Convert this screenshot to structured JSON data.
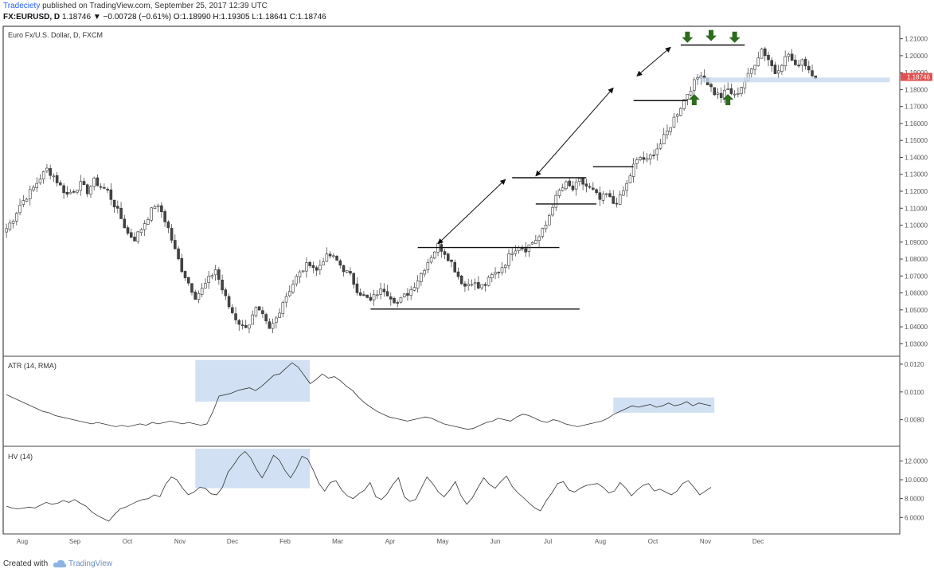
{
  "header": {
    "author": "Tradeciety",
    "published_text": "published on TradingView.com, September 25, 2017 12:39 UTC",
    "symbol": "FX:EURUSD, D",
    "last": "1.18746",
    "change": "▼ −0.00728 (−0.61%)",
    "ohlc": "O:1.18990 H:1.19305 L:1.18641 C:1.18746"
  },
  "footer": {
    "created_with": "Created with",
    "brand": "TradingView",
    "logo_icon": "tradingview-cloud-icon"
  },
  "chart_data": [
    {
      "type": "candlestick",
      "title": "Euro Fx/U.S. Dollar, D, FXCM",
      "ylim": [
        1.025,
        1.215
      ],
      "yticks": [
        1.21,
        1.2,
        1.19,
        1.18,
        1.17,
        1.16,
        1.15,
        1.14,
        1.13,
        1.12,
        1.11,
        1.1,
        1.09,
        1.08,
        1.07,
        1.06,
        1.05,
        1.04,
        1.03
      ],
      "ytick_labels": [
        "1.21000",
        "1.20000",
        "1.19000",
        "1.18000",
        "1.17000",
        "1.16000",
        "1.15000",
        "1.14000",
        "1.13000",
        "1.12000",
        "1.11000",
        "1.10000",
        "1.09000",
        "1.08000",
        "1.07000",
        "1.06000",
        "1.05000",
        "1.04000",
        "1.03000"
      ],
      "current_price_label": "1.18746",
      "current_price": 1.18746,
      "xtick_labels": [
        "Aug",
        "Sep",
        "Oct",
        "Nov",
        "Dec",
        "Feb",
        "Mar",
        "Apr",
        "May",
        "Jun",
        "Jul",
        "Aug",
        "Oct",
        "Nov",
        "Dec"
      ],
      "close_path": [
        [
          0,
          1.098
        ],
        [
          2,
          1.104
        ],
        [
          4,
          1.112
        ],
        [
          6,
          1.117
        ],
        [
          8,
          1.122
        ],
        [
          10,
          1.128
        ],
        [
          12,
          1.133
        ],
        [
          14,
          1.129
        ],
        [
          16,
          1.123
        ],
        [
          18,
          1.118
        ],
        [
          20,
          1.121
        ],
        [
          22,
          1.124
        ],
        [
          24,
          1.12
        ],
        [
          26,
          1.126
        ],
        [
          28,
          1.123
        ],
        [
          30,
          1.12
        ],
        [
          32,
          1.112
        ],
        [
          34,
          1.104
        ],
        [
          36,
          1.095
        ],
        [
          38,
          1.092
        ],
        [
          40,
          1.098
        ],
        [
          42,
          1.105
        ],
        [
          44,
          1.112
        ],
        [
          46,
          1.108
        ],
        [
          48,
          1.098
        ],
        [
          50,
          1.085
        ],
        [
          52,
          1.074
        ],
        [
          54,
          1.066
        ],
        [
          56,
          1.058
        ],
        [
          58,
          1.062
        ],
        [
          60,
          1.068
        ],
        [
          62,
          1.074
        ],
        [
          64,
          1.062
        ],
        [
          66,
          1.052
        ],
        [
          68,
          1.045
        ],
        [
          70,
          1.04
        ],
        [
          72,
          1.042
        ],
        [
          74,
          1.05
        ],
        [
          76,
          1.046
        ],
        [
          78,
          1.038
        ],
        [
          80,
          1.045
        ],
        [
          82,
          1.055
        ],
        [
          84,
          1.062
        ],
        [
          86,
          1.069
        ],
        [
          88,
          1.074
        ],
        [
          90,
          1.078
        ],
        [
          92,
          1.073
        ],
        [
          94,
          1.08
        ],
        [
          96,
          1.082
        ],
        [
          98,
          1.079
        ],
        [
          100,
          1.074
        ],
        [
          102,
          1.07
        ],
        [
          104,
          1.062
        ],
        [
          106,
          1.058
        ],
        [
          108,
          1.055
        ],
        [
          110,
          1.06
        ],
        [
          112,
          1.062
        ],
        [
          114,
          1.058
        ],
        [
          116,
          1.054
        ],
        [
          118,
          1.058
        ],
        [
          120,
          1.062
        ],
        [
          122,
          1.068
        ],
        [
          124,
          1.075
        ],
        [
          126,
          1.082
        ],
        [
          128,
          1.088
        ],
        [
          130,
          1.084
        ],
        [
          132,
          1.078
        ],
        [
          134,
          1.07
        ],
        [
          136,
          1.064
        ],
        [
          138,
          1.067
        ],
        [
          140,
          1.063
        ],
        [
          142,
          1.065
        ],
        [
          144,
          1.07
        ],
        [
          146,
          1.073
        ],
        [
          148,
          1.078
        ],
        [
          150,
          1.085
        ],
        [
          152,
          1.088
        ],
        [
          154,
          1.086
        ],
        [
          156,
          1.09
        ],
        [
          158,
          1.093
        ],
        [
          160,
          1.1
        ],
        [
          162,
          1.112
        ],
        [
          164,
          1.12
        ],
        [
          166,
          1.124
        ],
        [
          168,
          1.121
        ],
        [
          170,
          1.126
        ],
        [
          172,
          1.123
        ],
        [
          174,
          1.12
        ],
        [
          176,
          1.115
        ],
        [
          178,
          1.118
        ],
        [
          180,
          1.113
        ],
        [
          182,
          1.116
        ],
        [
          184,
          1.124
        ],
        [
          186,
          1.135
        ],
        [
          188,
          1.14
        ],
        [
          190,
          1.138
        ],
        [
          192,
          1.143
        ],
        [
          194,
          1.148
        ],
        [
          196,
          1.155
        ],
        [
          198,
          1.163
        ],
        [
          200,
          1.17
        ],
        [
          202,
          1.178
        ],
        [
          204,
          1.184
        ],
        [
          206,
          1.19
        ],
        [
          208,
          1.184
        ],
        [
          210,
          1.178
        ],
        [
          212,
          1.176
        ],
        [
          214,
          1.18
        ],
        [
          216,
          1.176
        ],
        [
          218,
          1.182
        ],
        [
          220,
          1.188
        ],
        [
          222,
          1.196
        ],
        [
          224,
          1.204
        ],
        [
          226,
          1.198
        ],
        [
          228,
          1.19
        ],
        [
          230,
          1.196
        ],
        [
          232,
          1.201
        ],
        [
          234,
          1.193
        ],
        [
          236,
          1.198
        ],
        [
          238,
          1.192
        ],
        [
          240,
          1.188
        ]
      ],
      "n_bars": 241,
      "annotations": {
        "support_levels": [
          1.0505,
          1.0868,
          1.1125,
          1.1345,
          1.1735
        ],
        "resistance_levels": [
          1.128,
          1.2063
        ],
        "zone_level": 1.1857,
        "trend_arrows": 4,
        "green_arrows_down": 3,
        "green_arrows_up": 2
      }
    },
    {
      "type": "line",
      "title": "ATR (14, RMA)",
      "ylim": [
        0.0062,
        0.0124
      ],
      "yticks": [
        0.012,
        0.01,
        0.008
      ],
      "ytick_labels": [
        "0.0120",
        "0.0100",
        "0.0080"
      ],
      "values": [
        0.0098,
        0.0096,
        0.0094,
        0.0092,
        0.009,
        0.0088,
        0.0086,
        0.0085,
        0.0083,
        0.0082,
        0.0081,
        0.008,
        0.0079,
        0.0078,
        0.0077,
        0.0078,
        0.0077,
        0.0076,
        0.0075,
        0.0076,
        0.0075,
        0.0076,
        0.0077,
        0.0076,
        0.0078,
        0.0077,
        0.0078,
        0.0079,
        0.0078,
        0.0077,
        0.0078,
        0.0077,
        0.0076,
        0.0077,
        0.0086,
        0.0097,
        0.0098,
        0.0099,
        0.0101,
        0.0102,
        0.0103,
        0.0101,
        0.0104,
        0.0108,
        0.0112,
        0.0113,
        0.0117,
        0.0121,
        0.0118,
        0.0112,
        0.0106,
        0.0109,
        0.0113,
        0.011,
        0.0111,
        0.0108,
        0.0104,
        0.0101,
        0.0096,
        0.0092,
        0.0089,
        0.0086,
        0.0084,
        0.0082,
        0.0081,
        0.008,
        0.0079,
        0.008,
        0.0081,
        0.0082,
        0.0081,
        0.0079,
        0.0077,
        0.0076,
        0.0075,
        0.0074,
        0.0073,
        0.0074,
        0.0076,
        0.0078,
        0.0079,
        0.0081,
        0.008,
        0.0079,
        0.0082,
        0.0084,
        0.0083,
        0.0081,
        0.0079,
        0.0078,
        0.008,
        0.0079,
        0.0077,
        0.0076,
        0.0075,
        0.0076,
        0.0077,
        0.0078,
        0.0079,
        0.0081,
        0.0084,
        0.0086,
        0.0088,
        0.009,
        0.0089,
        0.009,
        0.0091,
        0.0089,
        0.009,
        0.0092,
        0.009,
        0.0091,
        0.0093,
        0.009,
        0.0092,
        0.0091,
        0.009
      ],
      "highlight_boxes": 2
    },
    {
      "type": "line",
      "title": "HV (14)",
      "ylim": [
        4.5,
        13.3
      ],
      "yticks": [
        12,
        10,
        8,
        6
      ],
      "ytick_labels": [
        "12.0000",
        "10.0000",
        "8.0000",
        "6.0000"
      ],
      "values": [
        7.2,
        7.0,
        6.9,
        7.0,
        7.1,
        7.0,
        7.3,
        7.6,
        7.4,
        7.5,
        7.8,
        7.6,
        7.9,
        7.5,
        7.2,
        6.6,
        6.2,
        5.9,
        5.6,
        6.3,
        6.9,
        7.1,
        7.4,
        7.7,
        7.9,
        8.0,
        8.4,
        8.2,
        9.5,
        10.3,
        10.0,
        9.1,
        8.4,
        8.7,
        9.2,
        9.1,
        8.5,
        8.4,
        9.2,
        10.8,
        11.6,
        12.5,
        13.0,
        12.3,
        11.1,
        10.2,
        11.3,
        12.6,
        12.1,
        11.0,
        10.2,
        11.2,
        12.5,
        12.2,
        11.0,
        9.6,
        8.8,
        9.7,
        9.9,
        8.9,
        8.3,
        8.0,
        8.5,
        8.9,
        9.7,
        8.2,
        7.9,
        8.5,
        9.5,
        10.2,
        8.2,
        7.7,
        7.9,
        9.1,
        10.3,
        9.6,
        8.7,
        8.2,
        8.9,
        9.8,
        8.3,
        7.4,
        8.1,
        9.2,
        10.2,
        9.5,
        9.1,
        9.8,
        10.4,
        9.3,
        8.6,
        8.1,
        7.5,
        7.0,
        6.7,
        7.8,
        8.6,
        9.6,
        9.8,
        8.9,
        8.7,
        9.1,
        9.4,
        9.5,
        9.6,
        9.2,
        8.6,
        8.8,
        9.7,
        9.1,
        8.3,
        8.9,
        9.4,
        9.6,
        8.8,
        9.0,
        8.7,
        8.4,
        8.8,
        9.6,
        9.9,
        9.2,
        8.4,
        8.8,
        9.2
      ],
      "highlight_boxes": 1
    }
  ],
  "colors": {
    "bull": "#ffffff",
    "bear": "#444444",
    "line": "#333333",
    "highlight": "#c6d9f0",
    "green_arrow": "#2e6b1d",
    "price_tag": "#e05050"
  }
}
